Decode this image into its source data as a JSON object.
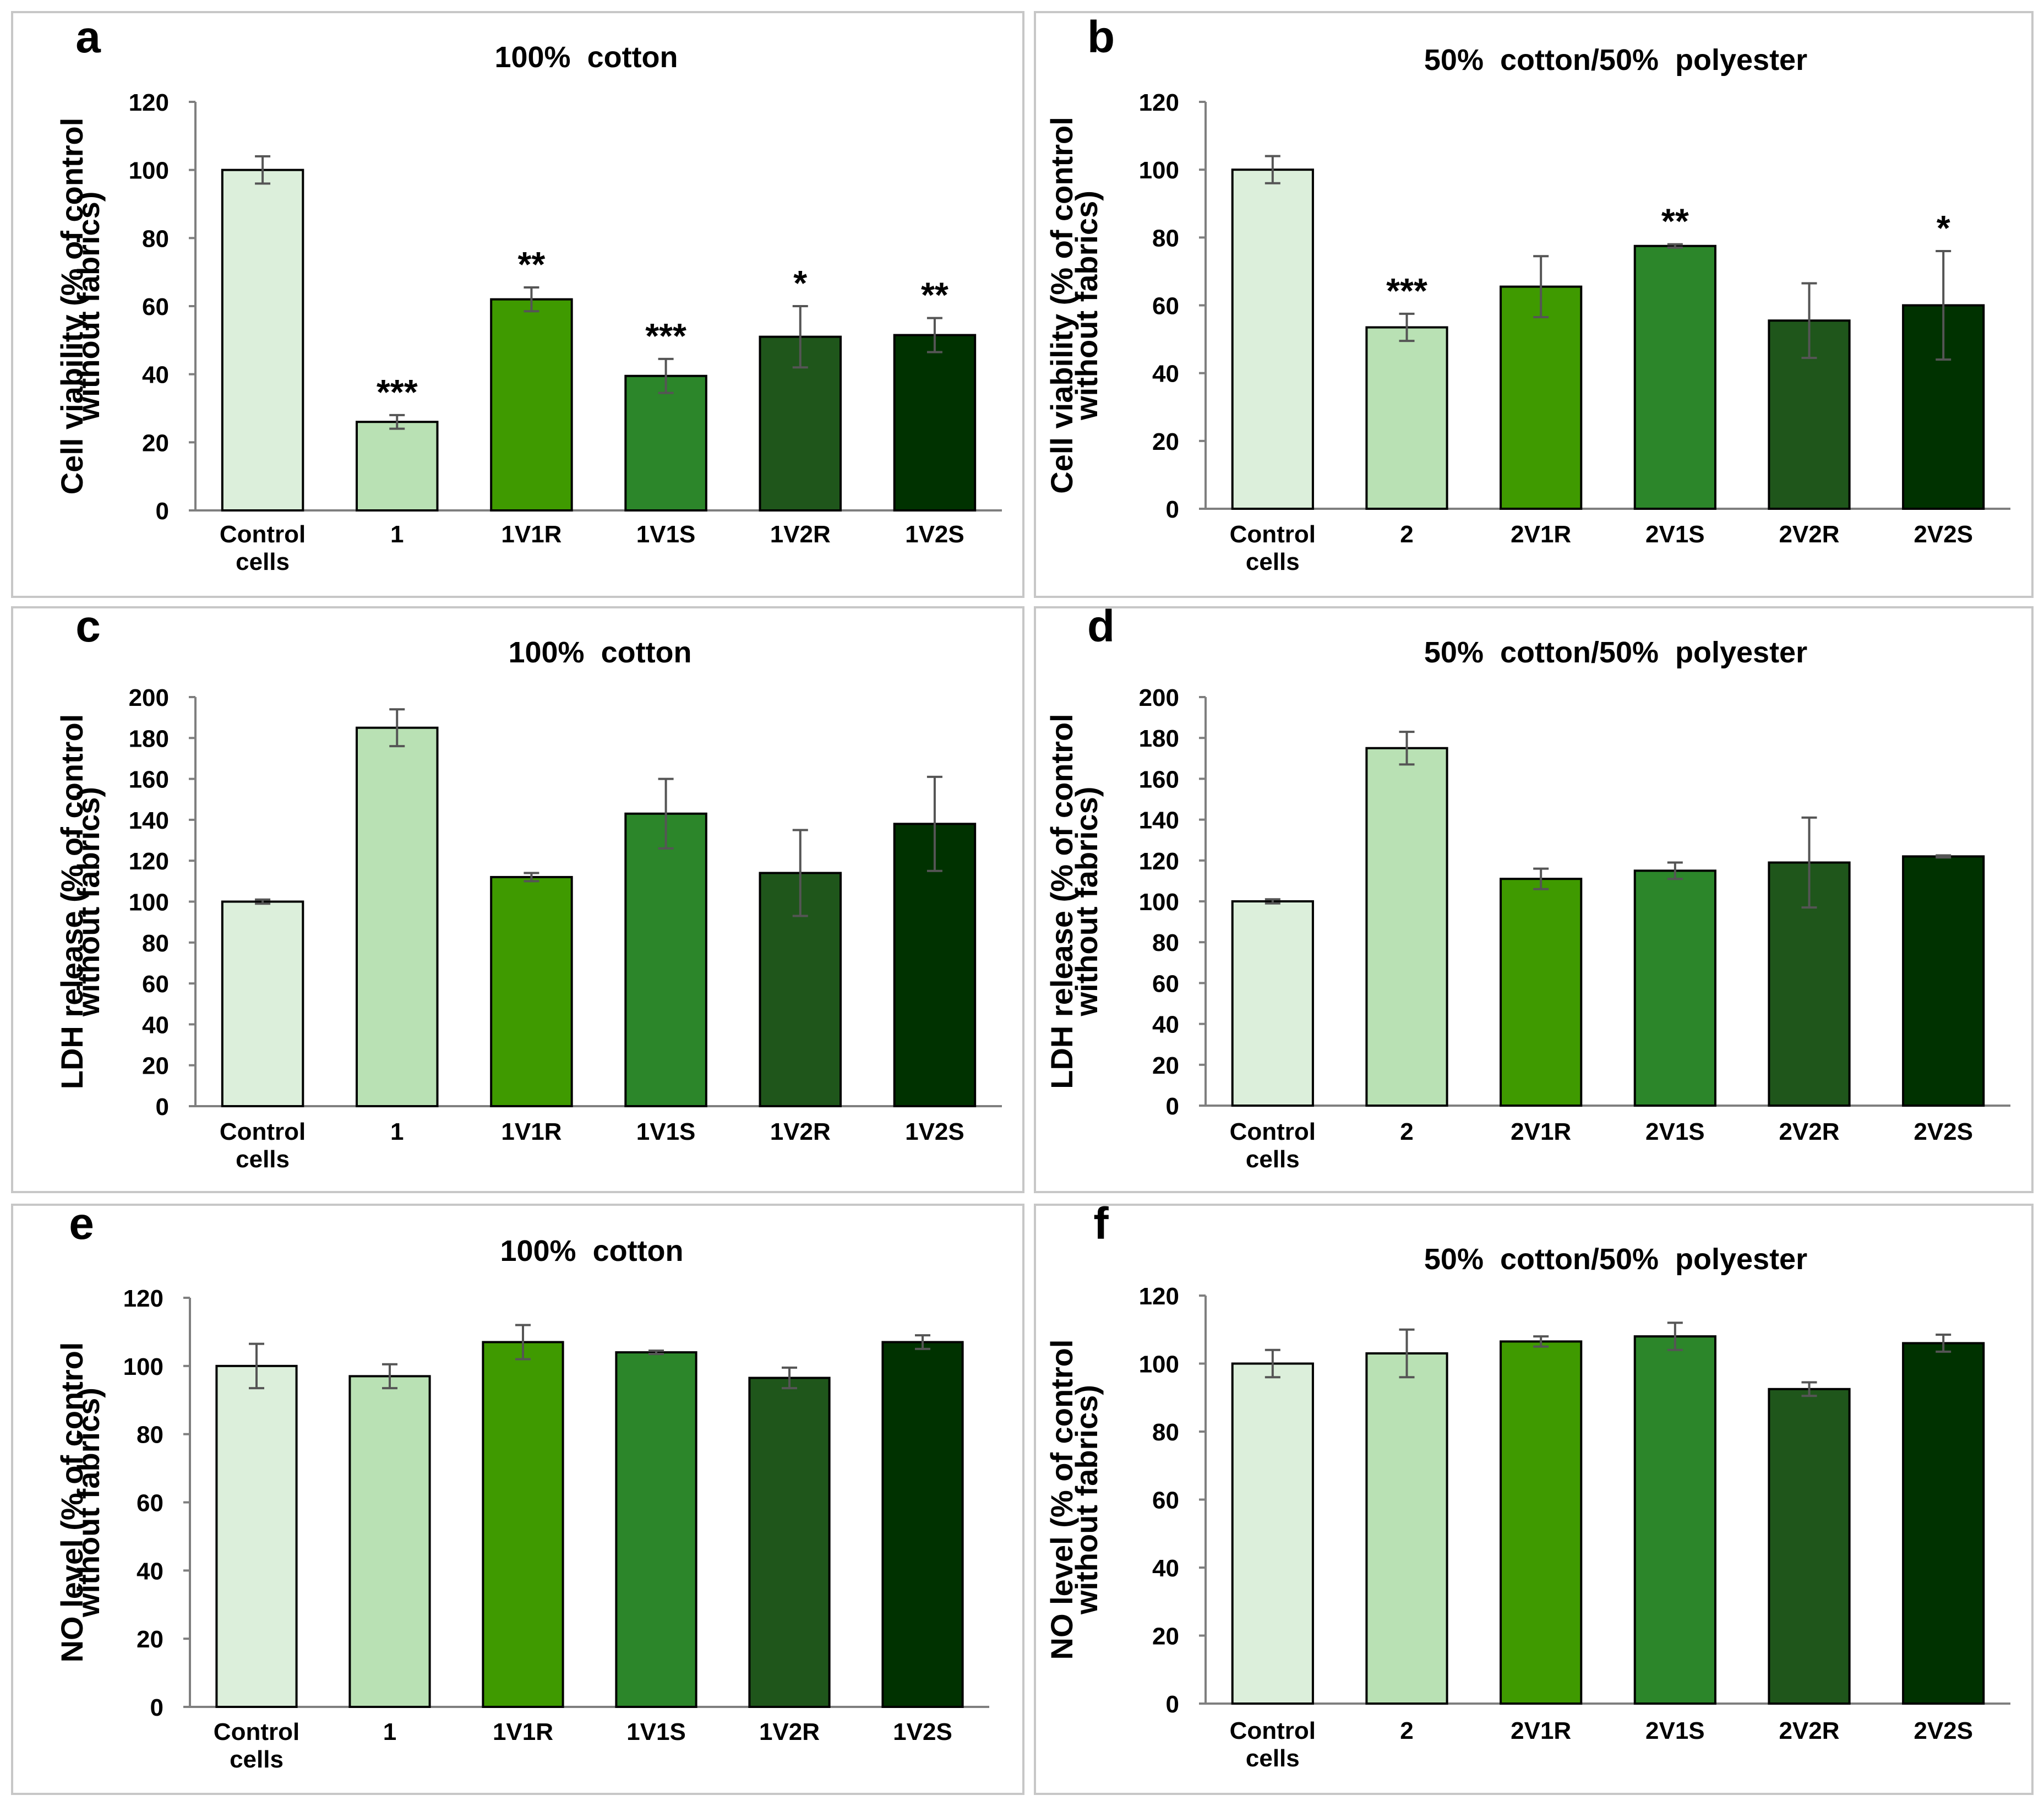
{
  "colors": {
    "bar_fills": [
      "#dcefdb",
      "#b9e1b4",
      "#3f9a00",
      "#2c862a",
      "#1f561b",
      "#003200"
    ],
    "bar_stroke": "#000000",
    "error_bar": "#555555",
    "axis": "#7f7f7f",
    "panel_border": "#c7c7c7"
  },
  "chart_data": [
    {
      "type": "bar",
      "panel_label": "a",
      "title": "100%  cotton",
      "ylabel_lines": [
        "Cell viability (% of control",
        "without fabrics)"
      ],
      "categories": [
        [
          "Control",
          "cells"
        ],
        [
          "1"
        ],
        [
          "1V1R"
        ],
        [
          "1V1S"
        ],
        [
          "1V2R"
        ],
        [
          "1V2S"
        ]
      ],
      "values": [
        100,
        26,
        62,
        39.5,
        51,
        51.5
      ],
      "errors": [
        4,
        2,
        3.5,
        5,
        9,
        5
      ],
      "significance": [
        "",
        "***",
        "**",
        "***",
        "*",
        "**"
      ],
      "ylim": [
        0,
        120
      ],
      "ytick_step": 20,
      "yticks": [
        "0",
        "20",
        "40",
        "60",
        "80",
        "100",
        "120"
      ]
    },
    {
      "type": "bar",
      "panel_label": "b",
      "title": "50%  cotton/50%  polyester",
      "ylabel_lines": [
        "Cell viability (% of control",
        "without fabrics)"
      ],
      "categories": [
        [
          "Control",
          "cells"
        ],
        [
          "2"
        ],
        [
          "2V1R"
        ],
        [
          "2V1S"
        ],
        [
          "2V2R"
        ],
        [
          "2V2S"
        ]
      ],
      "values": [
        100,
        53.5,
        65.5,
        77.5,
        55.5,
        60
      ],
      "errors": [
        4,
        4,
        9,
        0.5,
        11,
        16
      ],
      "significance": [
        "",
        "***",
        "",
        "**",
        "",
        "*"
      ],
      "ylim": [
        0,
        120
      ],
      "ytick_step": 20,
      "yticks": [
        "0",
        "20",
        "40",
        "60",
        "80",
        "100",
        "120"
      ]
    },
    {
      "type": "bar",
      "panel_label": "c",
      "title": "100%  cotton",
      "ylabel_lines": [
        "LDH release (% of control",
        "without fabrics)"
      ],
      "categories": [
        [
          "Control",
          "cells"
        ],
        [
          "1"
        ],
        [
          "1V1R"
        ],
        [
          "1V1S"
        ],
        [
          "1V2R"
        ],
        [
          "1V2S"
        ]
      ],
      "values": [
        100,
        185,
        112,
        143,
        114,
        138
      ],
      "errors": [
        1,
        9,
        2,
        17,
        21,
        23
      ],
      "significance": [
        "",
        "",
        "",
        "",
        "",
        ""
      ],
      "ylim": [
        0,
        200
      ],
      "ytick_step": 20,
      "yticks": [
        "0",
        "20",
        "40",
        "60",
        "80",
        "100",
        "120",
        "140",
        "160",
        "180",
        "200"
      ]
    },
    {
      "type": "bar",
      "panel_label": "d",
      "title": "50%  cotton/50%  polyester",
      "ylabel_lines": [
        "LDH release (% of control",
        "without fabrics)"
      ],
      "categories": [
        [
          "Control",
          "cells"
        ],
        [
          "2"
        ],
        [
          "2V1R"
        ],
        [
          "2V1S"
        ],
        [
          "2V2R"
        ],
        [
          "2V2S"
        ]
      ],
      "values": [
        100,
        175,
        111,
        115,
        119,
        122
      ],
      "errors": [
        1,
        8,
        5,
        4,
        22,
        0.5
      ],
      "significance": [
        "",
        "",
        "",
        "",
        "",
        ""
      ],
      "ylim": [
        0,
        200
      ],
      "ytick_step": 20,
      "yticks": [
        "0",
        "20",
        "40",
        "60",
        "80",
        "100",
        "120",
        "140",
        "160",
        "180",
        "200"
      ]
    },
    {
      "type": "bar",
      "panel_label": "e",
      "title": "100%  cotton",
      "ylabel_lines": [
        "NO level (% of control",
        "without fabrics)"
      ],
      "categories": [
        [
          "Control",
          "cells"
        ],
        [
          "1"
        ],
        [
          "1V1R"
        ],
        [
          "1V1S"
        ],
        [
          "1V2R"
        ],
        [
          "1V2S"
        ]
      ],
      "values": [
        100,
        97,
        107,
        104,
        96.5,
        107
      ],
      "errors": [
        6.5,
        3.5,
        5,
        0.5,
        3,
        2
      ],
      "significance": [
        "",
        "",
        "",
        "",
        "",
        ""
      ],
      "ylim": [
        0,
        120
      ],
      "ytick_step": 20,
      "yticks": [
        "0",
        "20",
        "40",
        "60",
        "80",
        "100",
        "120"
      ]
    },
    {
      "type": "bar",
      "panel_label": "f",
      "title": "50%  cotton/50%  polyester",
      "ylabel_lines": [
        "NO level (% of control",
        "without fabrics)"
      ],
      "categories": [
        [
          "Control",
          "cells"
        ],
        [
          "2"
        ],
        [
          "2V1R"
        ],
        [
          "2V1S"
        ],
        [
          "2V2R"
        ],
        [
          "2V2S"
        ]
      ],
      "values": [
        100,
        103,
        106.5,
        108,
        92.5,
        106
      ],
      "errors": [
        4,
        7,
        1.5,
        4,
        2,
        2.5
      ],
      "significance": [
        "",
        "",
        "",
        "",
        "",
        ""
      ],
      "ylim": [
        0,
        120
      ],
      "ytick_step": 20,
      "yticks": [
        "0",
        "20",
        "40",
        "60",
        "80",
        "100",
        "120"
      ]
    }
  ]
}
